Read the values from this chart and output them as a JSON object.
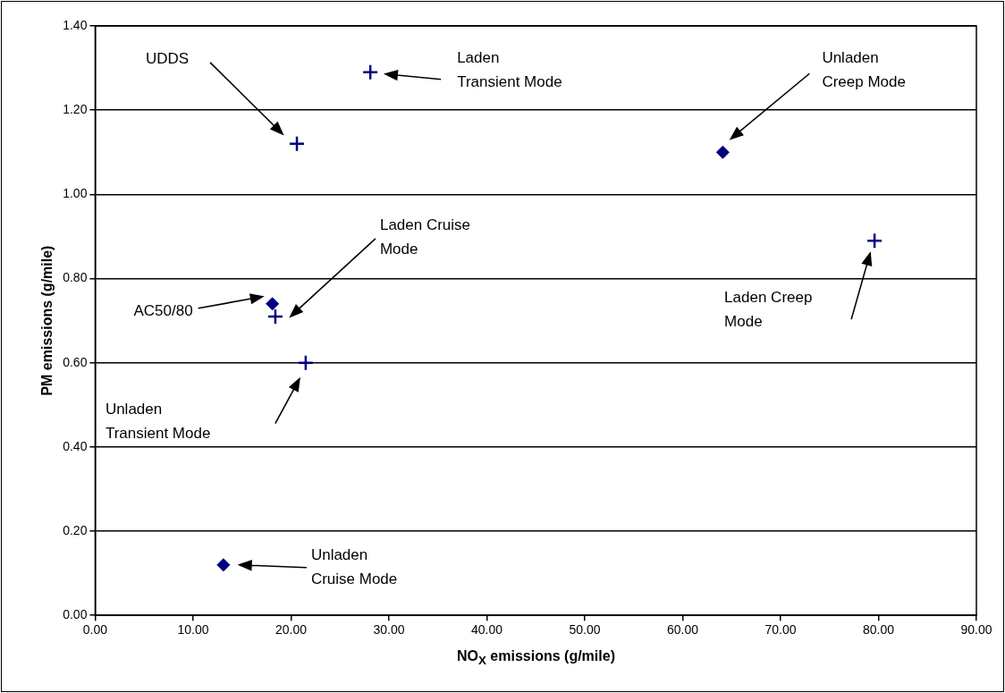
{
  "chart_data": {
    "type": "scatter",
    "xlabel": "NO$_{X}$ emissions (g/mile)",
    "ylabel": "PM emissions (g/mile)",
    "series": [
      {
        "color": "#000080",
        "marker": "diamond",
        "x": [
          18.1,
          64.1,
          13.1
        ],
        "values": [
          0.74,
          1.1,
          0.12
        ]
      },
      {
        "color": "#000080",
        "marker": "cross",
        "x": [
          20.6,
          28.1,
          18.4,
          79.6,
          21.5
        ],
        "values": [
          1.12,
          1.29,
          0.71,
          0.89,
          0.6
        ]
      }
    ],
    "xlim": [
      0,
      90
    ],
    "xticks": [
      {
        "value": 0,
        "label": "0.00"
      },
      {
        "value": 10,
        "label": "10.00"
      },
      {
        "value": 20,
        "label": "20.00"
      },
      {
        "value": 30,
        "label": "30.00"
      },
      {
        "value": 40,
        "label": "40.00"
      },
      {
        "value": 50,
        "label": "50.00"
      },
      {
        "value": 60,
        "label": "60.00"
      },
      {
        "value": 70,
        "label": "70.00"
      },
      {
        "value": 80,
        "label": "80.00"
      },
      {
        "value": 90,
        "label": "90.00"
      }
    ],
    "ylim": [
      0,
      1.4
    ],
    "yticks": [
      {
        "value": 0,
        "label": "0.00"
      },
      {
        "value": 0.2,
        "label": "0.20"
      },
      {
        "value": 0.4,
        "label": "0.40"
      },
      {
        "value": 0.6,
        "label": "0.60"
      },
      {
        "value": 0.8,
        "label": "0.80"
      },
      {
        "value": 1.0,
        "label": "1.00"
      },
      {
        "value": 1.2,
        "label": "1.20"
      },
      {
        "value": 1.4,
        "label": "1.40"
      }
    ],
    "grid": "y",
    "legend": false,
    "annotations": [
      "UDDS",
      "Laden\nTransient Mode",
      "Unladen\nCreep Mode",
      "Laden Cruise\nMode",
      "AC50/80",
      "Laden Creep\nMode",
      "Unladen\nTransient Mode",
      "Unladen\nCruise Mode"
    ]
  }
}
